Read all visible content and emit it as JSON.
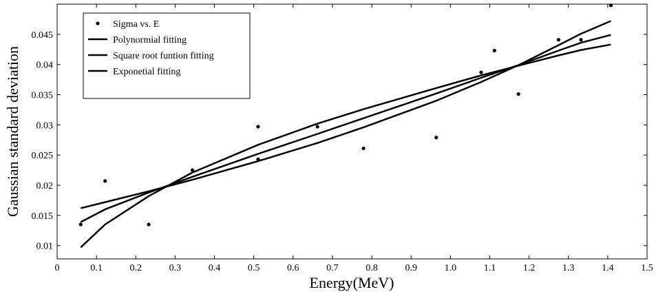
{
  "chart_data": {
    "type": "scatter",
    "xlabel": "Energy(MeV)",
    "ylabel": "Gaussian standard deviation",
    "xlim": [
      0,
      1.5
    ],
    "ylim": [
      0.0078,
      0.05
    ],
    "xticks": [
      0,
      0.1,
      0.2,
      0.3,
      0.4,
      0.5,
      0.6,
      0.7,
      0.8,
      0.9,
      1.0,
      1.1,
      1.2,
      1.3,
      1.4,
      1.5
    ],
    "xtick_labels": [
      "0",
      "0.1",
      "0.2",
      "0.3",
      "0.4",
      "0.5",
      "0.6",
      "0.7",
      "0.8",
      "0.9",
      "1.0",
      "1.1",
      "1.2",
      "1.3",
      "1.4",
      "1.5"
    ],
    "yticks": [
      0.01,
      0.015,
      0.02,
      0.025,
      0.03,
      0.035,
      0.04,
      0.045
    ],
    "ytick_labels": [
      "0.01",
      "0.015",
      "0.02",
      "0.025",
      "0.03",
      "0.035",
      "0.04",
      "0.045"
    ],
    "grid": false,
    "legend_position": "top-left",
    "colors": {
      "ink": "#000000",
      "background": "#ffffff"
    },
    "series": [
      {
        "name": "Sigma vs. E",
        "kind": "points",
        "x": [
          0.06,
          0.122,
          0.233,
          0.344,
          0.511,
          0.511,
          0.662,
          0.779,
          0.964,
          1.078,
          1.112,
          1.173,
          1.275,
          1.332,
          1.408
        ],
        "y": [
          0.0135,
          0.0207,
          0.0135,
          0.0225,
          0.0297,
          0.0243,
          0.0297,
          0.0261,
          0.0279,
          0.0387,
          0.0423,
          0.0351,
          0.0441,
          0.0441,
          0.0498
        ]
      },
      {
        "name": "Polynormial fitting",
        "kind": "line",
        "x": [
          0.06,
          0.122,
          0.233,
          0.344,
          0.511,
          0.662,
          0.779,
          0.964,
          1.078,
          1.173,
          1.275,
          1.332,
          1.408
        ],
        "y": [
          0.0139,
          0.016,
          0.0188,
          0.0214,
          0.0252,
          0.0285,
          0.0311,
          0.0352,
          0.0378,
          0.0399,
          0.0423,
          0.0436,
          0.0449
        ]
      },
      {
        "name": "Square root funtion fitting",
        "kind": "line",
        "x": [
          0.06,
          0.122,
          0.233,
          0.344,
          0.511,
          0.662,
          0.779,
          0.964,
          1.078,
          1.173,
          1.275,
          1.332,
          1.408
        ],
        "y": [
          0.0097,
          0.0135,
          0.0182,
          0.0221,
          0.0267,
          0.0302,
          0.0326,
          0.0361,
          0.0382,
          0.0398,
          0.0415,
          0.0424,
          0.0433
        ]
      },
      {
        "name": "Exponetial fitting",
        "kind": "line",
        "x": [
          0.06,
          0.122,
          0.233,
          0.344,
          0.511,
          0.662,
          0.779,
          0.964,
          1.078,
          1.173,
          1.275,
          1.332,
          1.408
        ],
        "y": [
          0.0162,
          0.0172,
          0.019,
          0.0209,
          0.024,
          0.027,
          0.0296,
          0.034,
          0.0371,
          0.0399,
          0.0432,
          0.0451,
          0.0472
        ]
      }
    ]
  }
}
